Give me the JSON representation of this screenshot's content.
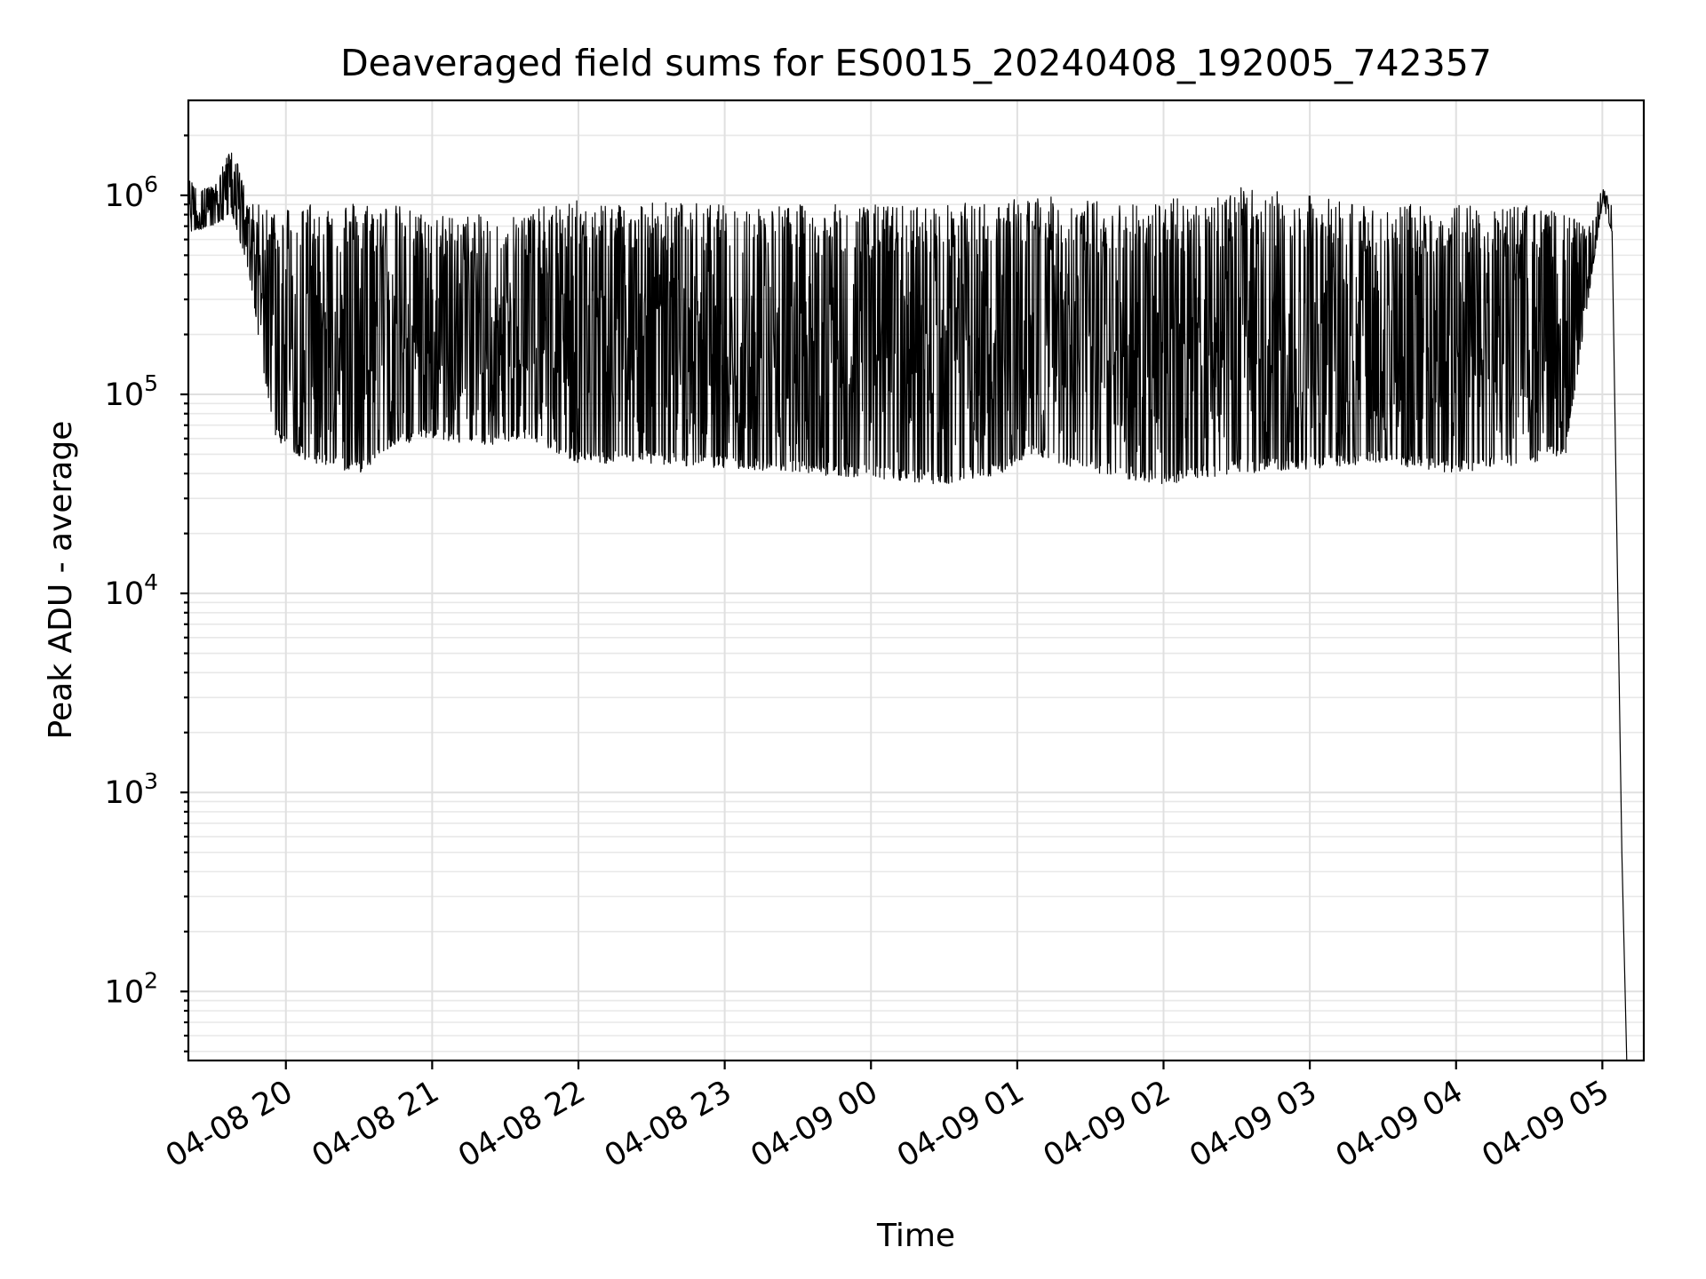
{
  "chart_data": {
    "type": "line",
    "title": "Deaveraged field sums for ES0015_20240408_192005_742357",
    "xlabel": "Time",
    "ylabel": "Peak ADU - average",
    "yscale": "log",
    "ylim": [
      45,
      3000000
    ],
    "xlim": [
      "2024-04-08 19:20",
      "2024-04-09 05:17"
    ],
    "grid": true,
    "grid_minor": true,
    "line_color": "#000000",
    "x_tick_labels": [
      "04-08 20",
      "04-08 21",
      "04-08 22",
      "04-08 23",
      "04-09 00",
      "04-09 01",
      "04-09 02",
      "04-09 03",
      "04-09 04",
      "04-09 05"
    ],
    "y_ticks": [
      {
        "value": 100,
        "base": "10",
        "exp": "2"
      },
      {
        "value": 1000,
        "base": "10",
        "exp": "3"
      },
      {
        "value": 10000,
        "base": "10",
        "exp": "4"
      },
      {
        "value": 100000,
        "base": "10",
        "exp": "5"
      },
      {
        "value": 1000000,
        "base": "10",
        "exp": "6"
      }
    ],
    "series": [
      {
        "x_approx": [
          "2024-04-08 19:20",
          "2024-04-08 19:30",
          "2024-04-08 19:38",
          "2024-04-08 19:45",
          "2024-04-08 19:55",
          "2024-04-08 20:10",
          "2024-04-08 20:30",
          "2024-04-08 20:45",
          "2024-04-08 21:00",
          "2024-04-08 21:20",
          "2024-04-08 21:40",
          "2024-04-08 22:00",
          "2024-04-08 22:30",
          "2024-04-08 23:00",
          "2024-04-08 23:30",
          "2024-04-09 00:00",
          "2024-04-09 00:30",
          "2024-04-09 00:55",
          "2024-04-09 01:05",
          "2024-04-09 01:30",
          "2024-04-09 02:00",
          "2024-04-09 02:30",
          "2024-04-09 03:00",
          "2024-04-09 03:30",
          "2024-04-09 04:00",
          "2024-04-09 04:30",
          "2024-04-09 04:45",
          "2024-04-09 04:55",
          "2024-04-09 05:00",
          "2024-04-09 05:04",
          "2024-04-09 05:08",
          "2024-04-09 05:10"
        ],
        "y_min_approx": [
          650000,
          700000,
          800000,
          400000,
          60000,
          45000,
          40000,
          55000,
          60000,
          55000,
          60000,
          45000,
          45000,
          42000,
          40000,
          38000,
          35000,
          40000,
          50000,
          40000,
          35000,
          40000,
          42000,
          45000,
          40000,
          45000,
          50000,
          350000,
          900000,
          650000,
          500,
          45
        ],
        "y_max_approx": [
          1200000,
          1100000,
          1800000,
          900000,
          900000,
          950000,
          950000,
          900000,
          800000,
          800000,
          850000,
          950000,
          950000,
          900000,
          900000,
          900000,
          900000,
          950000,
          1000000,
          950000,
          950000,
          1100000,
          1000000,
          900000,
          900000,
          900000,
          800000,
          700000,
          1100000,
          900000,
          500,
          45
        ]
      }
    ]
  }
}
